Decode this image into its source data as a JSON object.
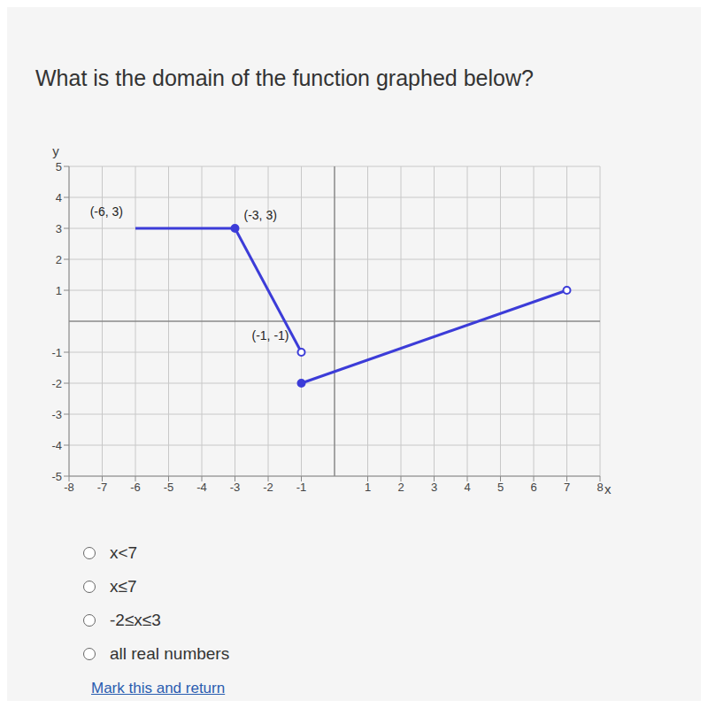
{
  "question": "What is the domain of the function graphed below?",
  "choices": [
    "x<7",
    "x≤7",
    "-2≤x≤3",
    "all real numbers"
  ],
  "link": "Mark this and return",
  "chart_data": {
    "type": "line",
    "x_label": "x",
    "y_label": "y",
    "xlim": [
      -8,
      8
    ],
    "ylim": [
      -5,
      5
    ],
    "xticks": [
      -8,
      -7,
      -6,
      -5,
      -4,
      -3,
      -2,
      -1,
      1,
      2,
      3,
      4,
      5,
      6,
      7,
      8
    ],
    "yticks": [
      -5,
      -4,
      -3,
      -2,
      -1,
      1,
      2,
      3,
      4,
      5
    ],
    "grid": true,
    "series": [
      {
        "type": "line",
        "color": "#3c3cd8",
        "x": [
          -6,
          -3
        ],
        "values": [
          3,
          3
        ]
      },
      {
        "type": "line",
        "color": "#3c3cd8",
        "x": [
          -3,
          -1
        ],
        "values": [
          3,
          -1
        ]
      },
      {
        "type": "line",
        "color": "#3c3cd8",
        "x": [
          -1,
          7
        ],
        "values": [
          -2,
          1
        ]
      },
      {
        "type": "scatter",
        "marker": "filled",
        "color": "#3c3cd8",
        "x": [
          -3,
          -1
        ],
        "values": [
          3,
          -2
        ]
      },
      {
        "type": "scatter",
        "marker": "open",
        "color": "#3c3cd8",
        "x": [
          -1,
          7
        ],
        "values": [
          -1,
          1
        ]
      }
    ],
    "annotations": [
      {
        "text": "(-6, 3)",
        "x": -6,
        "y": 3
      },
      {
        "text": "(-3, 3)",
        "x": -3,
        "y": 3
      },
      {
        "text": "(-1, -1)",
        "x": -1,
        "y": -1
      }
    ]
  }
}
